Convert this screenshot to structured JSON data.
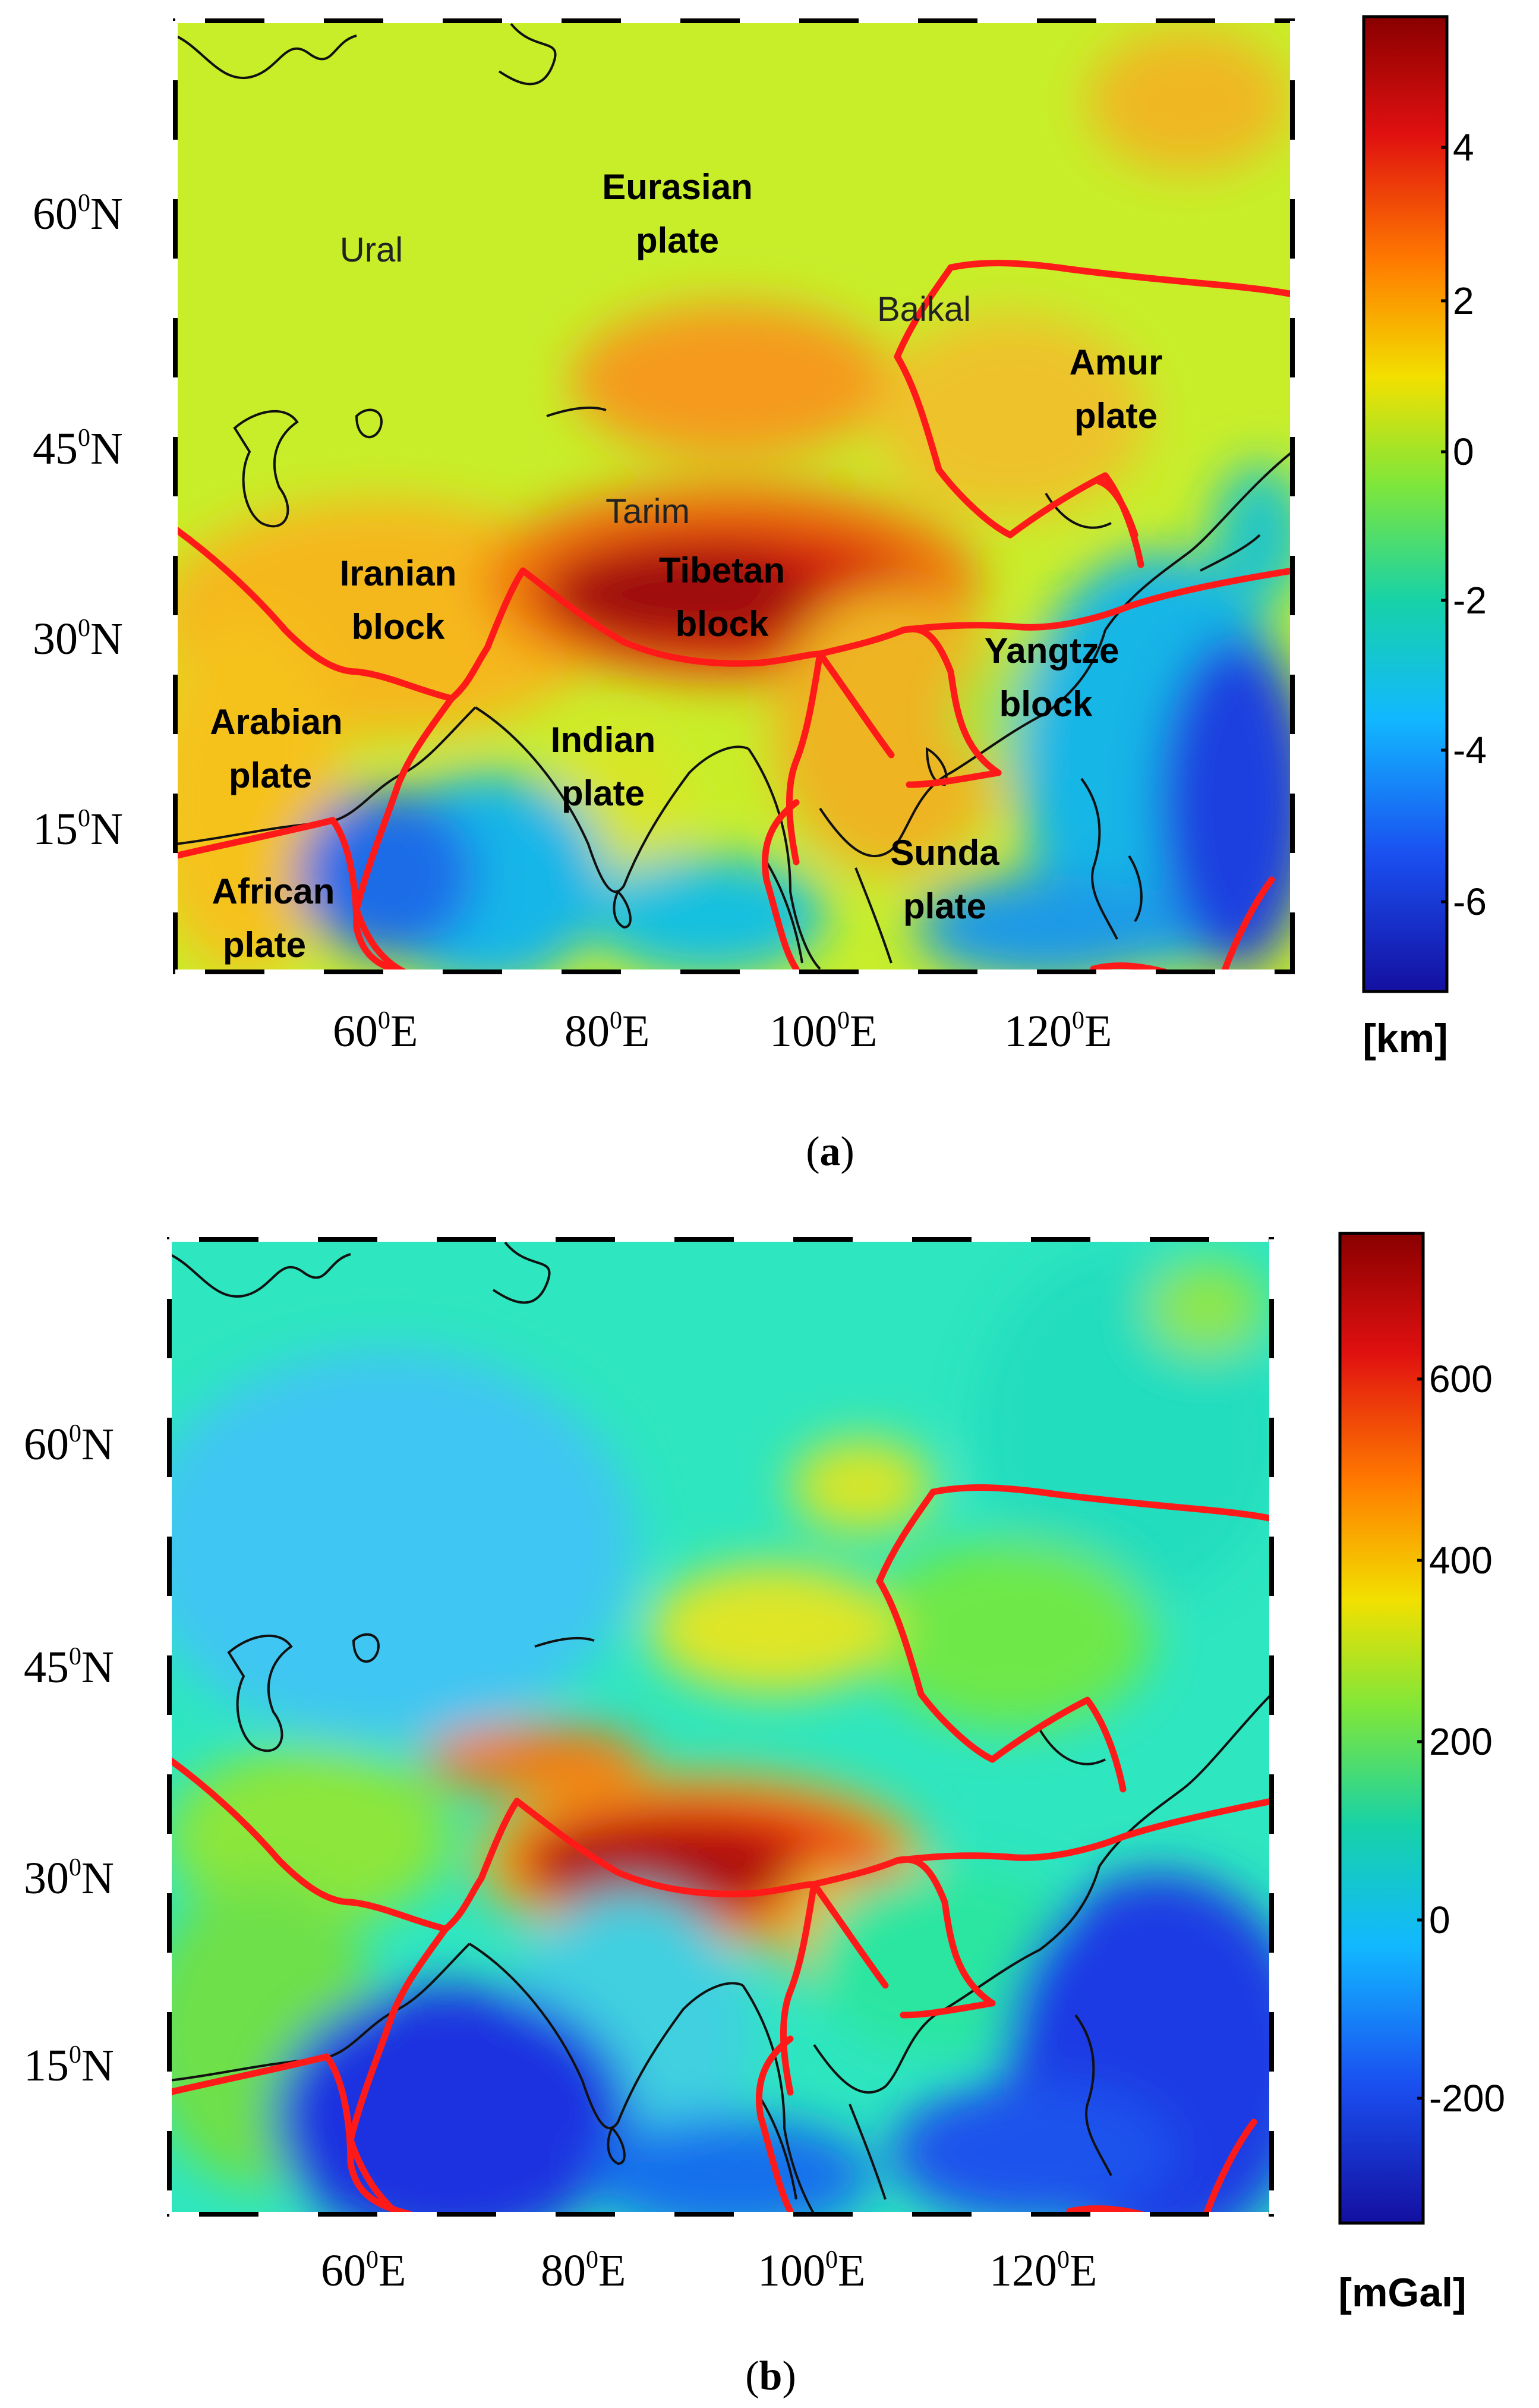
{
  "panels": [
    {
      "id": "a",
      "caption_open": "(",
      "caption_letter": "a",
      "caption_close": ")",
      "lat_ticks": [
        "60",
        "45",
        "30",
        "15"
      ],
      "lon_ticks": [
        "60",
        "80",
        "100",
        "120"
      ],
      "lat_suffix": "N",
      "lon_suffix": "E",
      "degree_mark": "0",
      "colorbar": {
        "ticks": [
          "4",
          "2",
          "0",
          "-2",
          "-4",
          "-6"
        ],
        "unit": "[km]",
        "colors": [
          "#8a0000",
          "#e01010",
          "#ff7a00",
          "#f2e000",
          "#7fe63a",
          "#16d2a8",
          "#12b8ff",
          "#1a4ff0",
          "#1410a0"
        ]
      },
      "labels": {
        "eurasian1": "Eurasian",
        "eurasian2": "plate",
        "ural": "Ural",
        "baikal": "Baikal",
        "amur1": "Amur",
        "amur2": "plate",
        "tarim": "Tarim",
        "iranian1": "Iranian",
        "iranian2": "block",
        "tibetan1": "Tibetan",
        "tibetan2": "block",
        "yangtze1": "Yangtze",
        "yangtze2": "block",
        "arabian1": "Arabian",
        "arabian2": "plate",
        "indian1": "Indian",
        "indian2": "plate",
        "sunda1": "Sunda",
        "sunda2": "plate",
        "african1": "African",
        "african2": "plate"
      }
    },
    {
      "id": "b",
      "caption_open": "(",
      "caption_letter": "b",
      "caption_close": ")",
      "lat_ticks": [
        "60",
        "45",
        "30",
        "15"
      ],
      "lon_ticks": [
        "60",
        "80",
        "100",
        "120"
      ],
      "lat_suffix": "N",
      "lon_suffix": "E",
      "degree_mark": "0",
      "colorbar": {
        "ticks": [
          "600",
          "400",
          "200",
          "0",
          "-200"
        ],
        "unit": "[mGal]",
        "colors": [
          "#8a0000",
          "#e01010",
          "#ff7a00",
          "#f2e000",
          "#7fe63a",
          "#16d2a8",
          "#12b8ff",
          "#1a4ff0",
          "#1410a0"
        ]
      }
    }
  ]
}
